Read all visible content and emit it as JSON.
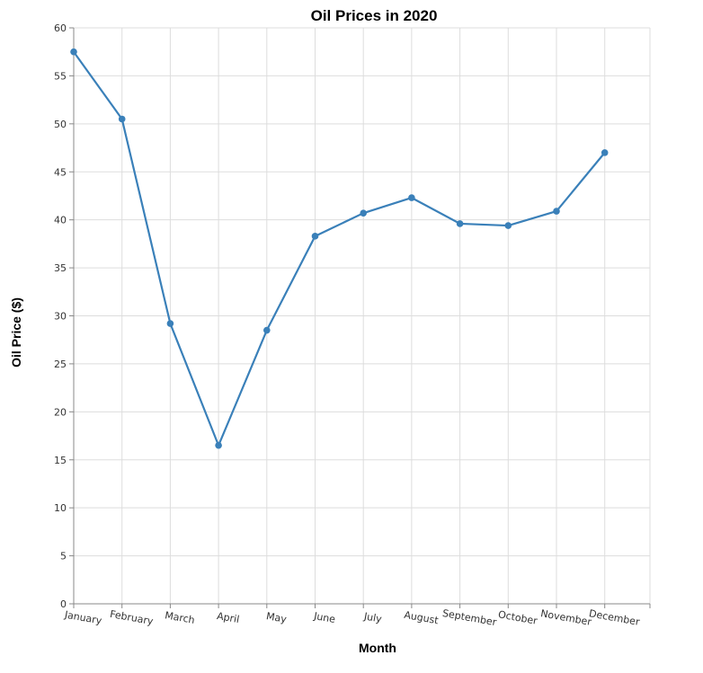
{
  "chart_data": {
    "type": "line",
    "title": "Oil Prices in 2020",
    "xlabel": "Month",
    "ylabel": "Oil Price ($)",
    "categories": [
      "January",
      "February",
      "March",
      "April",
      "May",
      "June",
      "July",
      "August",
      "September",
      "October",
      "November",
      "December"
    ],
    "series": [
      {
        "values": [
          57.5,
          50.5,
          29.2,
          16.5,
          28.5,
          38.3,
          40.7,
          42.3,
          39.6,
          39.4,
          40.9,
          47.0
        ]
      }
    ],
    "ylim": [
      0,
      60
    ],
    "yticks": [
      "0",
      "5",
      "10",
      "15",
      "20",
      "25",
      "30",
      "35",
      "40",
      "45",
      "50",
      "55",
      "60"
    ],
    "grid": true,
    "line_color": "#3a80b9"
  }
}
